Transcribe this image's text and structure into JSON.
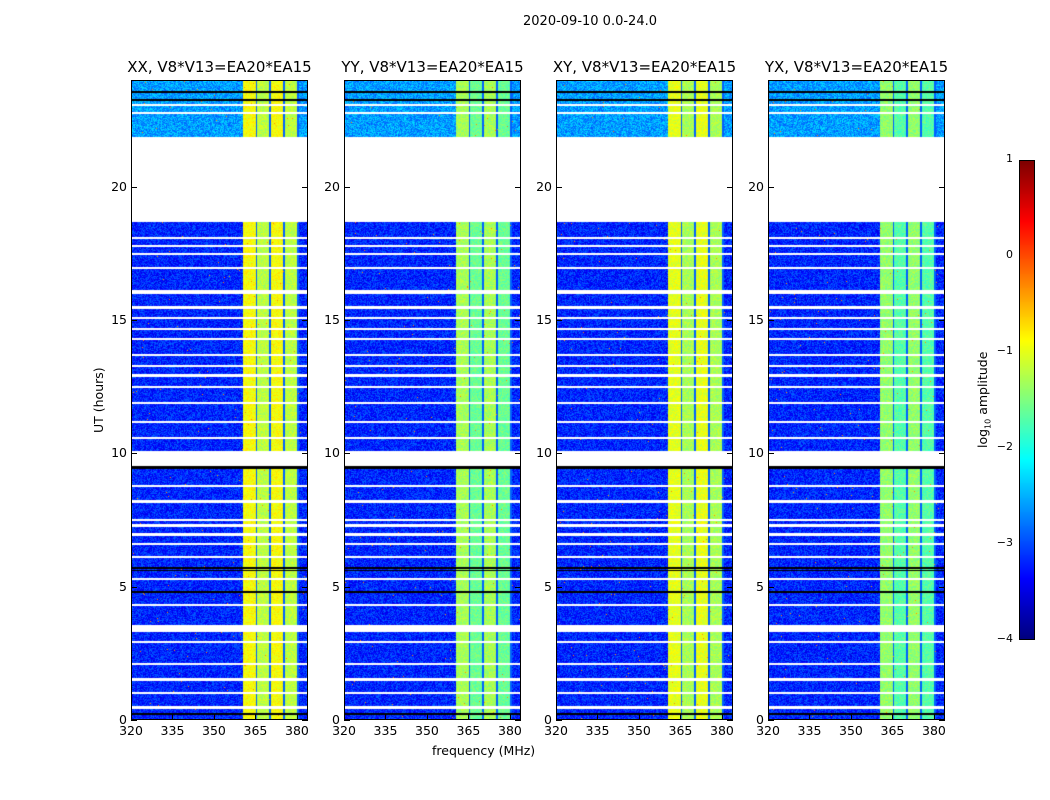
{
  "chart_data": {
    "type": "heatmap",
    "title": "2020-09-10 0.0-24.0",
    "xlabel": "frequency (MHz)",
    "ylabel": "UT (hours)",
    "xlim": [
      320,
      384
    ],
    "ylim": [
      0,
      24
    ],
    "xticks": [
      "320",
      "335",
      "350",
      "365",
      "380"
    ],
    "xtick_values": [
      320,
      335,
      350,
      365,
      380
    ],
    "yticks": [
      "0",
      "5",
      "10",
      "15",
      "20"
    ],
    "ytick_values": [
      0,
      5,
      10,
      15,
      20
    ],
    "panels": [
      {
        "title": "XX, V8*V13=EA20*EA15",
        "rfi_level": -0.9
      },
      {
        "title": "YY, V8*V13=EA20*EA15",
        "rfi_level": -1.3
      },
      {
        "title": "XY, V8*V13=EA20*EA15",
        "rfi_level": -1.0
      },
      {
        "title": "YX, V8*V13=EA20*EA15",
        "rfi_level": -1.4
      }
    ],
    "background_level": -3.2,
    "rfi_band_mhz": [
      360.5,
      381
    ],
    "flagged_hours": [
      [
        18.7,
        21.9
      ],
      [
        3.3,
        3.55
      ],
      [
        16.0,
        16.15
      ],
      [
        9.55,
        10.1
      ],
      [
        1.45,
        1.55
      ],
      [
        6.9,
        7.0
      ],
      [
        12.9,
        13.0
      ]
    ],
    "colorbar": {
      "label": "log10 amplitude",
      "label_main": "log",
      "label_sub": "10",
      "label_rest": " amplitude",
      "range": [
        -4,
        1
      ],
      "ticks": [
        "1",
        "0",
        "−1",
        "−2",
        "−3",
        "−4"
      ],
      "tick_values": [
        1,
        0,
        -1,
        -2,
        -3,
        -4
      ],
      "colormap": "jet"
    }
  }
}
